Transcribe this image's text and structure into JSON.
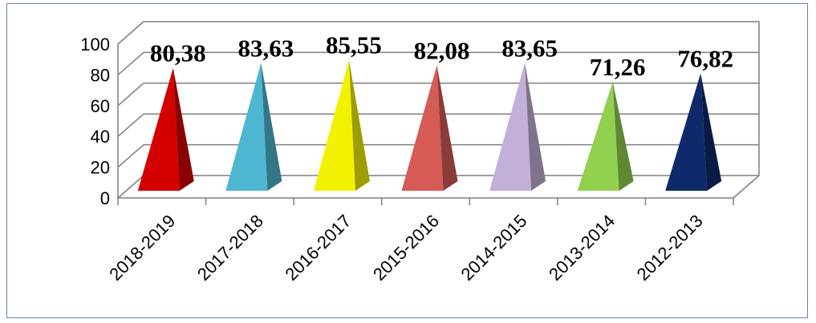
{
  "chart_data": {
    "type": "bar",
    "style": "3d-pyramid",
    "title": "",
    "xlabel": "",
    "ylabel": "",
    "ylim": [
      0,
      100
    ],
    "y_ticks": [
      "0",
      "20",
      "40",
      "60",
      "80",
      "100"
    ],
    "grid": true,
    "legend": "none",
    "categories": [
      "2018-2019",
      "2017-2018",
      "2016-2017",
      "2015-2016",
      "2014-2015",
      "2013-2014",
      "2012-2013"
    ],
    "values": [
      80.38,
      83.63,
      85.55,
      82.08,
      83.65,
      71.26,
      76.82
    ],
    "data_labels": [
      "80,38",
      "83,63",
      "85,55",
      "82,08",
      "83,65",
      "71,26",
      "76,82"
    ],
    "colors": [
      "#d40000",
      "#4db6d0",
      "#f2f200",
      "#d65a56",
      "#c3b0d8",
      "#92d050",
      "#0f2a6b"
    ]
  }
}
